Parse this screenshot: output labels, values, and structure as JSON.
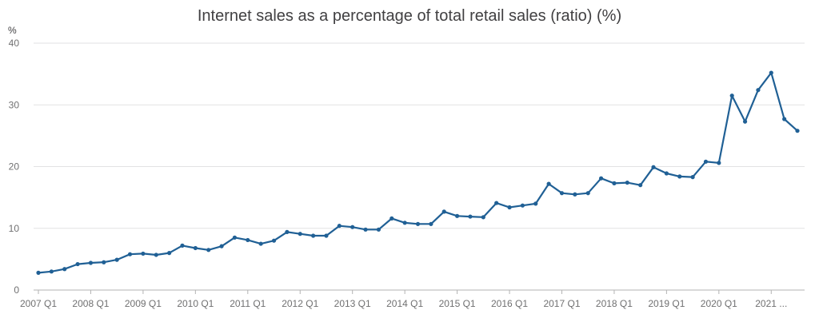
{
  "chart_data": {
    "type": "line",
    "title": "Internet sales as a percentage of total retail sales (ratio) (%)",
    "ylabel": "%",
    "xlabel": "",
    "ylim": [
      0,
      40
    ],
    "yticks": [
      "0",
      "10",
      "20",
      "30",
      "40"
    ],
    "grid": true,
    "x": [
      "2007 Q1",
      "2007 Q2",
      "2007 Q3",
      "2007 Q4",
      "2008 Q1",
      "2008 Q2",
      "2008 Q3",
      "2008 Q4",
      "2009 Q1",
      "2009 Q2",
      "2009 Q3",
      "2009 Q4",
      "2010 Q1",
      "2010 Q2",
      "2010 Q3",
      "2010 Q4",
      "2011 Q1",
      "2011 Q2",
      "2011 Q3",
      "2011 Q4",
      "2012 Q1",
      "2012 Q2",
      "2012 Q3",
      "2012 Q4",
      "2013 Q1",
      "2013 Q2",
      "2013 Q3",
      "2013 Q4",
      "2014 Q1",
      "2014 Q2",
      "2014 Q3",
      "2014 Q4",
      "2015 Q1",
      "2015 Q2",
      "2015 Q3",
      "2015 Q4",
      "2016 Q1",
      "2016 Q2",
      "2016 Q3",
      "2016 Q4",
      "2017 Q1",
      "2017 Q2",
      "2017 Q3",
      "2017 Q4",
      "2018 Q1",
      "2018 Q2",
      "2018 Q3",
      "2018 Q4",
      "2019 Q1",
      "2019 Q2",
      "2019 Q3",
      "2019 Q4",
      "2020 Q1",
      "2020 Q2",
      "2020 Q3",
      "2020 Q4",
      "2021 Q1",
      "2021 Q2",
      "2021 Q3"
    ],
    "xtick_labels": [
      "2007 Q1",
      "2008 Q1",
      "2009 Q1",
      "2010 Q1",
      "2011 Q1",
      "2012 Q1",
      "2013 Q1",
      "2014 Q1",
      "2015 Q1",
      "2016 Q1",
      "2017 Q1",
      "2018 Q1",
      "2019 Q1",
      "2020 Q1",
      "2021 ..."
    ],
    "series": [
      {
        "color": "#206095",
        "values": [
          2.8,
          3.0,
          3.4,
          4.2,
          4.4,
          4.5,
          4.9,
          5.8,
          5.9,
          5.7,
          6.0,
          7.2,
          6.8,
          6.5,
          7.1,
          8.5,
          8.1,
          7.5,
          8.0,
          9.4,
          9.1,
          8.8,
          8.8,
          10.4,
          10.2,
          9.8,
          9.8,
          11.6,
          10.9,
          10.7,
          10.7,
          12.7,
          12.0,
          11.9,
          11.8,
          14.1,
          13.4,
          13.7,
          14.0,
          17.2,
          15.7,
          15.5,
          15.7,
          18.1,
          17.3,
          17.4,
          17.0,
          19.9,
          18.9,
          18.4,
          18.3,
          20.8,
          20.6,
          31.5,
          27.3,
          32.4,
          35.2,
          27.7,
          25.8
        ]
      }
    ]
  }
}
